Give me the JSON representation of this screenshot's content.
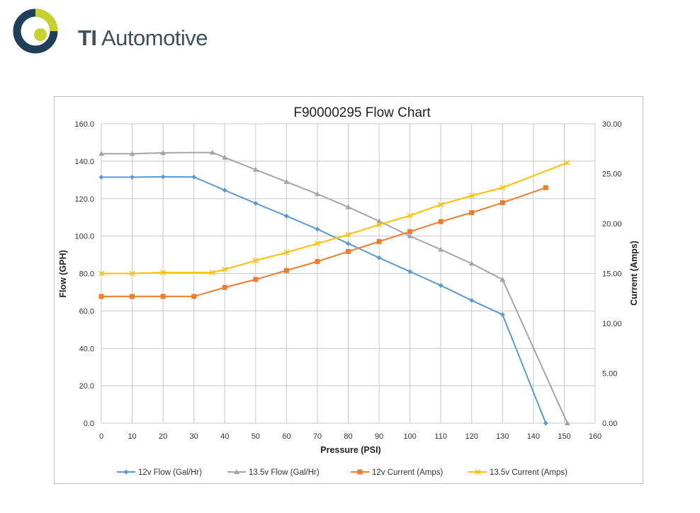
{
  "brand": {
    "name": "TI Automotive",
    "mark_primary": "TI",
    "mark_secondary": "Automotive",
    "colors": {
      "navy": "#1f3e5a",
      "lime": "#c8d22c",
      "text": "#3f4f5c"
    }
  },
  "chart_data": {
    "type": "line",
    "title": "F90000295  Flow Chart",
    "xlabel": "Pressure (PSI)",
    "ylabel": "Flow (GPH)",
    "y2label": "Current (Amps)",
    "xlim": [
      0,
      160
    ],
    "ylim": [
      0,
      160
    ],
    "y2lim": [
      0,
      30
    ],
    "xticks": [
      0,
      10,
      20,
      30,
      40,
      50,
      60,
      70,
      80,
      90,
      100,
      110,
      120,
      130,
      140,
      150,
      160
    ],
    "yticks": [
      "0.0",
      "20.0",
      "40.0",
      "60.0",
      "80.0",
      "100.0",
      "120.0",
      "140.0",
      "160.0"
    ],
    "y2ticks": [
      "0.00",
      "5.00",
      "10.00",
      "15.00",
      "20.00",
      "25.00",
      "30.00"
    ],
    "grid": true,
    "legend": "bottom",
    "series": [
      {
        "name": "12v Flow (Gal/Hr)",
        "axis": "left",
        "color": "#5b9bd5",
        "marker": "diamond",
        "x": [
          0,
          10,
          20,
          30,
          40,
          50,
          60,
          70,
          80,
          90,
          100,
          110,
          120,
          130,
          144
        ],
        "values": [
          131.5,
          131.5,
          131.7,
          131.6,
          124.5,
          117.5,
          110.7,
          103.7,
          96.0,
          88.4,
          81.0,
          73.6,
          65.6,
          58.0,
          0.0
        ]
      },
      {
        "name": "13.5v Flow (Gal/Hr)",
        "axis": "left",
        "color": "#a5a5a5",
        "marker": "triangle",
        "x": [
          0,
          10,
          20,
          36,
          40,
          50,
          60,
          70,
          80,
          90,
          100,
          110,
          120,
          130,
          151
        ],
        "values": [
          144.0,
          144.0,
          144.5,
          144.7,
          142.0,
          135.5,
          129.0,
          122.5,
          115.5,
          108.0,
          100.0,
          92.8,
          85.3,
          76.8,
          0.0
        ]
      },
      {
        "name": "12v Current (Amps)",
        "axis": "right",
        "color": "#ed7d31",
        "marker": "square",
        "x": [
          0,
          10,
          20,
          30,
          40,
          50,
          60,
          70,
          80,
          90,
          100,
          110,
          120,
          130,
          144
        ],
        "values": [
          12.7,
          12.7,
          12.7,
          12.7,
          13.6,
          14.4,
          15.3,
          16.2,
          17.2,
          18.2,
          19.2,
          20.2,
          21.1,
          22.1,
          23.6
        ]
      },
      {
        "name": "13.5v Current (Amps)",
        "axis": "right",
        "color": "#ffc000",
        "marker": "x",
        "x": [
          0,
          10,
          20,
          36,
          40,
          50,
          60,
          70,
          80,
          90,
          100,
          110,
          120,
          130,
          151
        ],
        "values": [
          15.0,
          15.0,
          15.1,
          15.1,
          15.4,
          16.3,
          17.1,
          18.0,
          18.9,
          19.9,
          20.8,
          21.9,
          22.8,
          23.6,
          26.1
        ]
      }
    ]
  }
}
